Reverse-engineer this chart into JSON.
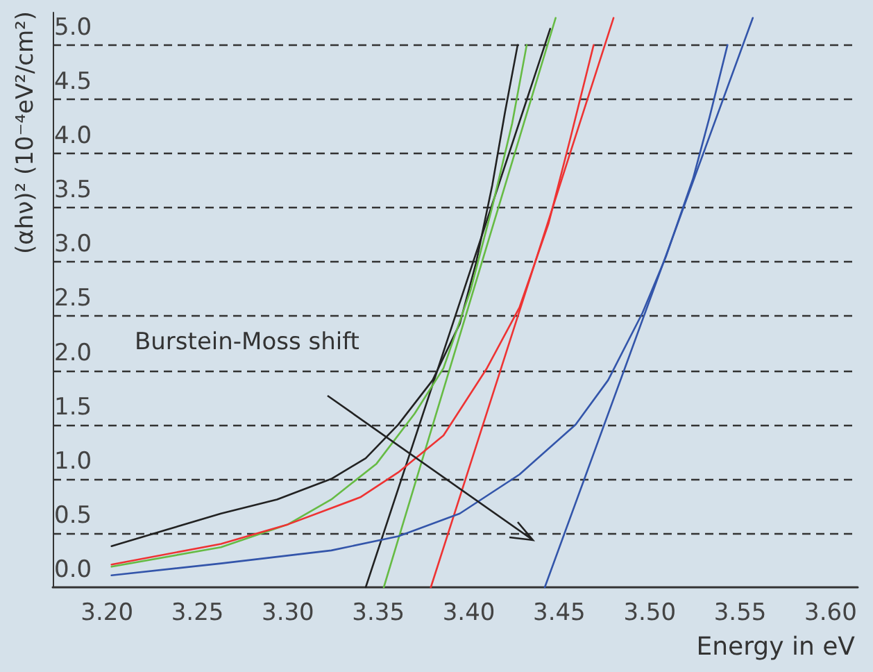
{
  "chart_data": {
    "type": "line",
    "xlabel": "Energy in eV",
    "ylabel": "(αhν)² (10⁻⁴eV²/cm²)",
    "xlim": [
      3.17,
      3.615
    ],
    "xticks": [
      {
        "value": 3.2,
        "label": "3.20"
      },
      {
        "value": 3.25,
        "label": "3.25"
      },
      {
        "value": 3.3,
        "label": "3.30"
      },
      {
        "value": 3.35,
        "label": "3.35"
      },
      {
        "value": 3.4,
        "label": "3.40"
      },
      {
        "value": 3.45,
        "label": "3.45"
      },
      {
        "value": 3.5,
        "label": "3.50"
      },
      {
        "value": 3.55,
        "label": "3.55"
      },
      {
        "value": 3.6,
        "label": "3.60"
      }
    ],
    "ylim": [
      0,
      5.3
    ],
    "yticks": [
      {
        "value": 0,
        "label": "0.0"
      },
      {
        "value": 0.5,
        "label": "0.5"
      },
      {
        "value": 1,
        "label": "1.0"
      },
      {
        "value": 1.5,
        "label": "1.5"
      },
      {
        "value": 2,
        "label": "2.0"
      },
      {
        "value": 2.5,
        "label": "2.5"
      },
      {
        "value": 3,
        "label": "3.0"
      },
      {
        "value": 3.5,
        "label": "3.5"
      },
      {
        "value": 4,
        "label": "4.0"
      },
      {
        "value": 4.5,
        "label": "4.5"
      },
      {
        "value": 5,
        "label": "5.0"
      }
    ],
    "grid": "y",
    "marker": "none",
    "line_style": "solid",
    "annotations": [
      "Burstein-Moss shift"
    ],
    "series": [
      {
        "color": "#222222",
        "x": [
          3.2025,
          3.263,
          3.294,
          3.324,
          3.343,
          3.361,
          3.38,
          3.395,
          3.404,
          3.413,
          3.42,
          3.427
        ],
        "values": [
          0.38,
          0.68,
          0.81,
          1.0,
          1.19,
          1.5,
          1.91,
          2.43,
          2.99,
          3.71,
          4.38,
          5.0
        ]
      },
      {
        "color": "#222222",
        "x": [
          3.343,
          3.445
        ],
        "values": [
          0,
          5.15
        ]
      },
      {
        "color": "#66bb44",
        "x": [
          3.2025,
          3.263,
          3.3,
          3.324,
          3.349,
          3.37,
          3.386,
          3.401,
          3.413,
          3.424,
          3.432
        ],
        "values": [
          0.19,
          0.37,
          0.58,
          0.81,
          1.14,
          1.6,
          2.02,
          2.74,
          3.51,
          4.28,
          5.0
        ]
      },
      {
        "color": "#66bb44",
        "x": [
          3.353,
          3.448
        ],
        "values": [
          0,
          5.25
        ]
      },
      {
        "color": "#ee3333",
        "x": [
          3.2025,
          3.263,
          3.3,
          3.34,
          3.361,
          3.386,
          3.41,
          3.428,
          3.444,
          3.456,
          3.469
        ],
        "values": [
          0.21,
          0.4,
          0.58,
          0.83,
          1.06,
          1.4,
          2.02,
          2.58,
          3.35,
          4.13,
          5.0
        ]
      },
      {
        "color": "#ee3333",
        "x": [
          3.379,
          3.48
        ],
        "values": [
          0,
          5.25
        ]
      },
      {
        "color": "#3355aa",
        "x": [
          3.2025,
          3.263,
          3.324,
          3.361,
          3.395,
          3.428,
          3.459,
          3.477,
          3.496,
          3.509,
          3.524,
          3.533,
          3.543
        ],
        "values": [
          0.11,
          0.22,
          0.34,
          0.47,
          0.68,
          1.04,
          1.5,
          1.91,
          2.53,
          3.05,
          3.77,
          4.33,
          5.0
        ]
      },
      {
        "color": "#3355aa",
        "x": [
          3.442,
          3.557
        ],
        "values": [
          0,
          5.25
        ]
      }
    ]
  }
}
